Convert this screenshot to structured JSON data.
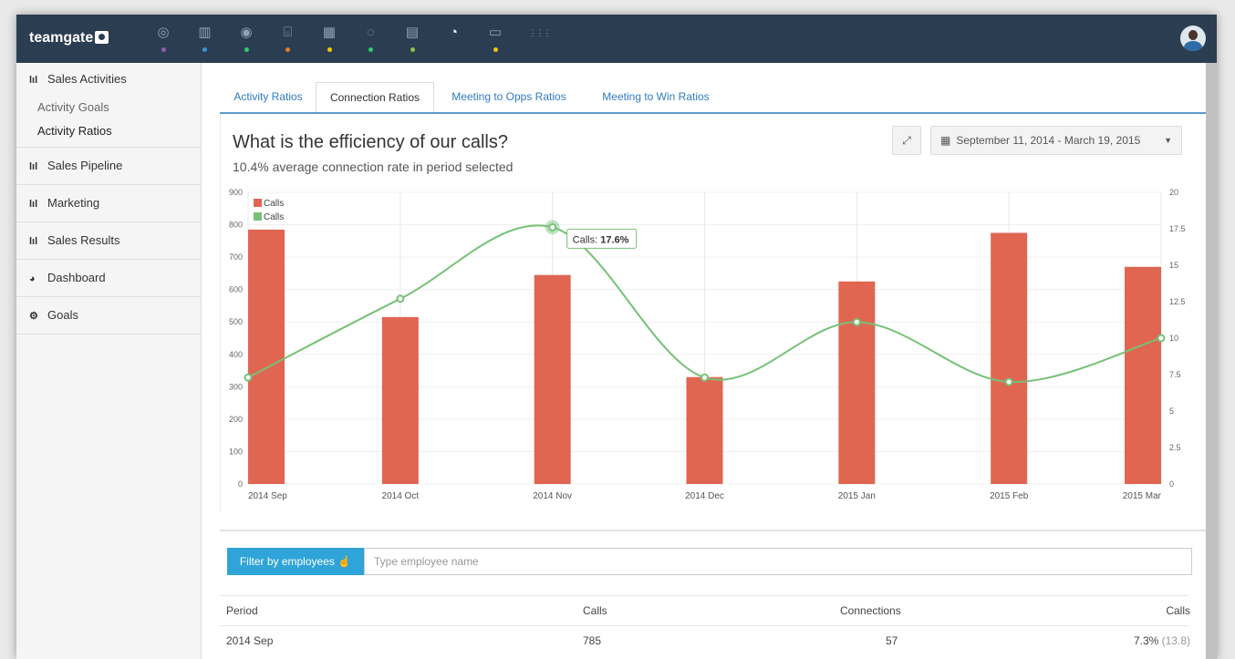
{
  "app": {
    "logo": "teamgate"
  },
  "nav": {
    "icons": [
      {
        "name": "target-icon",
        "glyph": "◎",
        "dot": "#9b59b6"
      },
      {
        "name": "contacts-book-icon",
        "glyph": "▥",
        "dot": "#3498db"
      },
      {
        "name": "people-icon",
        "glyph": "◉",
        "dot": "#2ecc71"
      },
      {
        "name": "briefcase-icon",
        "glyph": "⌸",
        "dot": "#e67e22"
      },
      {
        "name": "calendar-icon",
        "glyph": "▦",
        "dot": "#f1c40f"
      },
      {
        "name": "chat-icon",
        "glyph": "◌",
        "dot": "#2ecc71"
      },
      {
        "name": "clipboard-icon",
        "glyph": "▤",
        "dot": "#8bc34a"
      },
      {
        "name": "reports-pie-icon",
        "glyph": "◔",
        "dot": null,
        "active": true
      },
      {
        "name": "credit-card-icon",
        "glyph": "▭",
        "dot": "#f1c40f"
      },
      {
        "name": "apps-grid-icon",
        "glyph": "⋮⋮⋮",
        "dot": null
      }
    ]
  },
  "sidebar": {
    "sales_activities": "Sales Activities",
    "activity_goals": "Activity Goals",
    "activity_ratios": "Activity Ratios",
    "sales_pipeline": "Sales Pipeline",
    "marketing": "Marketing",
    "sales_results": "Sales Results",
    "dashboard": "Dashboard",
    "goals": "Goals"
  },
  "tabs": {
    "activity_ratios": "Activity Ratios",
    "connection_ratios": "Connection Ratios",
    "meeting_to_opps": "Meeting to Opps Ratios",
    "meeting_to_win": "Meeting to Win Ratios"
  },
  "report": {
    "question": "What is the efficiency of our calls?",
    "rate_value": "10.4%",
    "rate_text": " average connection rate in period selected",
    "date_range": "September 11, 2014 - March 19, 2015"
  },
  "chart_data": {
    "type": "bar",
    "categories": [
      "2014 Sep",
      "2014 Oct",
      "2014 Nov",
      "2014 Dec",
      "2015 Jan",
      "2015 Feb",
      "2015 Mar"
    ],
    "series": [
      {
        "name": "Calls",
        "type": "bar",
        "axis": "left",
        "color": "#e06652",
        "values": [
          785,
          515,
          645,
          330,
          625,
          775,
          670
        ]
      },
      {
        "name": "Calls",
        "type": "line",
        "axis": "right",
        "color": "#77c177",
        "values": [
          7.3,
          12.7,
          17.6,
          7.3,
          11.1,
          7.0,
          10.0
        ]
      }
    ],
    "y_left": {
      "min": 0,
      "max": 900,
      "ticks": [
        "0",
        "100",
        "200",
        "300",
        "400",
        "500",
        "600",
        "700",
        "800",
        "900"
      ]
    },
    "y_right": {
      "min": 0,
      "max": 20,
      "ticks": [
        "0",
        "2.5",
        "5",
        "7.5",
        "10",
        "12.5",
        "15",
        "17.5",
        "20"
      ]
    },
    "legend": "top-left",
    "tooltip": {
      "label": "Calls: ",
      "value": "17.6%"
    }
  },
  "filter": {
    "button_label": "Filter by employees",
    "placeholder": "Type employee name"
  },
  "table": {
    "headers": {
      "period": "Period",
      "calls": "Calls",
      "connections": "Connections",
      "ratio": "Calls"
    },
    "rows": [
      {
        "period": "2014 Sep",
        "calls": "785",
        "connections": "57",
        "ratio": "7.3%",
        "ratio_extra": "(13.8)"
      }
    ]
  }
}
